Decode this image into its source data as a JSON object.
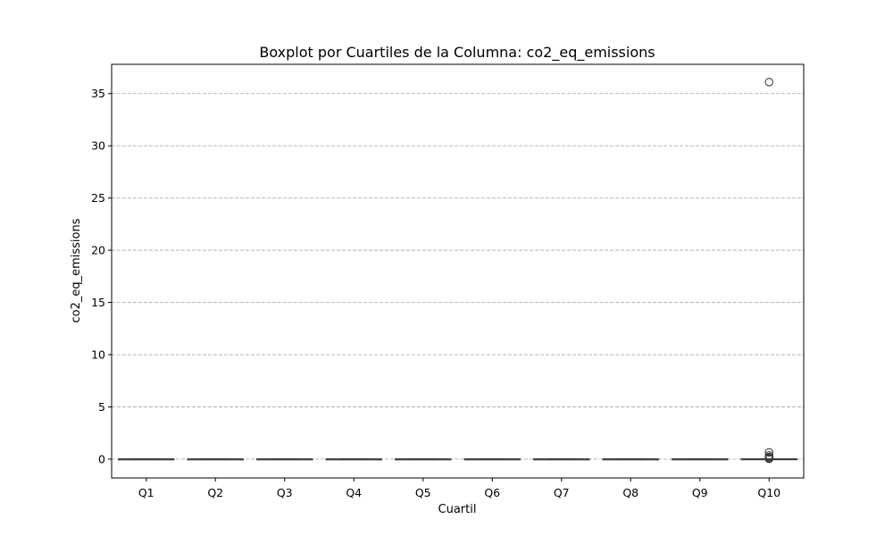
{
  "chart_data": {
    "type": "boxplot",
    "title": "Boxplot por Cuartiles de la Columna: co2_eq_emissions",
    "xlabel": "Cuartil",
    "ylabel": "co2_eq_emissions",
    "categories": [
      "Q1",
      "Q2",
      "Q3",
      "Q4",
      "Q5",
      "Q6",
      "Q7",
      "Q8",
      "Q9",
      "Q10"
    ],
    "ylim": [
      -1.8,
      37.8
    ],
    "yticks": [
      0,
      5,
      10,
      15,
      20,
      25,
      30,
      35
    ],
    "grid": "y-dashed",
    "boxes": [
      {
        "category": "Q1",
        "whisker_low": 0,
        "q1": 0,
        "median": 0,
        "q3": 0,
        "whisker_high": 0,
        "outliers": []
      },
      {
        "category": "Q2",
        "whisker_low": 0,
        "q1": 0,
        "median": 0,
        "q3": 0,
        "whisker_high": 0,
        "outliers": []
      },
      {
        "category": "Q3",
        "whisker_low": 0,
        "q1": 0,
        "median": 0,
        "q3": 0,
        "whisker_high": 0,
        "outliers": []
      },
      {
        "category": "Q4",
        "whisker_low": 0,
        "q1": 0,
        "median": 0,
        "q3": 0,
        "whisker_high": 0,
        "outliers": []
      },
      {
        "category": "Q5",
        "whisker_low": 0,
        "q1": 0,
        "median": 0,
        "q3": 0,
        "whisker_high": 0,
        "outliers": []
      },
      {
        "category": "Q6",
        "whisker_low": 0,
        "q1": 0,
        "median": 0,
        "q3": 0,
        "whisker_high": 0,
        "outliers": []
      },
      {
        "category": "Q7",
        "whisker_low": 0,
        "q1": 0,
        "median": 0,
        "q3": 0,
        "whisker_high": 0,
        "outliers": []
      },
      {
        "category": "Q8",
        "whisker_low": 0,
        "q1": 0,
        "median": 0,
        "q3": 0,
        "whisker_high": 0,
        "outliers": []
      },
      {
        "category": "Q9",
        "whisker_low": 0,
        "q1": 0,
        "median": 0,
        "q3": 0,
        "whisker_high": 0,
        "outliers": []
      },
      {
        "category": "Q10",
        "whisker_low": 0,
        "q1": 0,
        "median": 0,
        "q3": 0.01,
        "whisker_high": 0.02,
        "outliers": [
          36.1,
          0.65,
          0.35,
          0.2,
          0.12,
          0.08,
          0.05,
          0.03
        ]
      }
    ],
    "colors": {
      "box_line": "#3d3d3d",
      "grid": "#b0b0b0",
      "outlier_edge": "#3d3d3d"
    }
  }
}
